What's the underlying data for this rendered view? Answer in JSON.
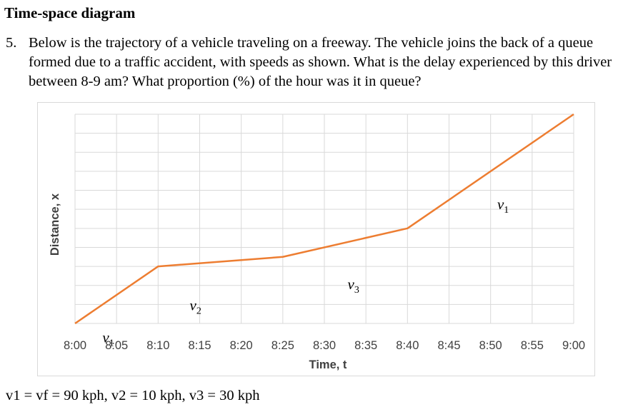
{
  "heading": "Time-space diagram",
  "question": {
    "number": "5.",
    "text": "Below is the trajectory of a vehicle traveling on a freeway. The vehicle joins the back of a queue formed due to a traffic accident, with speeds as shown. What is the delay experienced by this driver between 8-9 am? What proportion (%) of the hour was it in queue?"
  },
  "speeds_line": "v1 = vf = 90 kph, v2 = 10 kph, v3 = 30 kph",
  "chart_data": {
    "type": "line",
    "title": "",
    "xlabel": "Time, t",
    "ylabel": "Distance, x",
    "x_ticks": [
      "8:00",
      "8:05",
      "8:10",
      "8:15",
      "8:20",
      "8:25",
      "8:30",
      "8:35",
      "8:40",
      "8:45",
      "8:50",
      "8:55",
      "9:00"
    ],
    "x_range_minutes": [
      0,
      60
    ],
    "y_range": [
      0,
      11
    ],
    "grid": true,
    "series": [
      {
        "x": [
          "8:00",
          "8:10",
          "8:25",
          "8:40",
          "9:00"
        ],
        "x_minutes": [
          0,
          10,
          25,
          40,
          60
        ],
        "y": [
          0,
          3.0,
          3.5,
          5.0,
          11.0
        ],
        "color": "#ED7D31"
      }
    ],
    "annotations": [
      {
        "label": "v1",
        "sub": "1",
        "x_minutes": 51.5,
        "y": 6.0
      },
      {
        "label": "v2",
        "sub": "2",
        "x_minutes": 14.5,
        "y": 0.7
      },
      {
        "label": "v3",
        "sub": "3",
        "x_minutes": 33.5,
        "y": 1.8
      },
      {
        "label": "v1",
        "sub": "1",
        "x_minutes": 4,
        "y": -1.0
      }
    ]
  }
}
